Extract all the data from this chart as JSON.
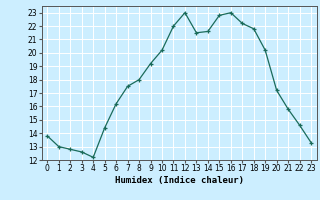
{
  "x": [
    0,
    1,
    2,
    3,
    4,
    5,
    6,
    7,
    8,
    9,
    10,
    11,
    12,
    13,
    14,
    15,
    16,
    17,
    18,
    19,
    20,
    21,
    22,
    23
  ],
  "y": [
    13.8,
    13.0,
    12.8,
    12.6,
    12.2,
    14.4,
    16.2,
    17.5,
    18.0,
    19.2,
    20.2,
    22.0,
    23.0,
    21.5,
    21.6,
    22.8,
    23.0,
    22.2,
    21.8,
    20.2,
    17.2,
    15.8,
    14.6,
    13.3
  ],
  "line_color": "#1a6b5a",
  "marker_color": "#1a6b5a",
  "bg_color": "#cceeff",
  "grid_color": "#ffffff",
  "xlabel": "Humidex (Indice chaleur)",
  "ylim": [
    12,
    23.5
  ],
  "xlim": [
    -0.5,
    23.5
  ],
  "yticks": [
    12,
    13,
    14,
    15,
    16,
    17,
    18,
    19,
    20,
    21,
    22,
    23
  ],
  "xticks": [
    0,
    1,
    2,
    3,
    4,
    5,
    6,
    7,
    8,
    9,
    10,
    11,
    12,
    13,
    14,
    15,
    16,
    17,
    18,
    19,
    20,
    21,
    22,
    23
  ],
  "tick_fontsize": 5.5,
  "label_fontsize": 6.5
}
